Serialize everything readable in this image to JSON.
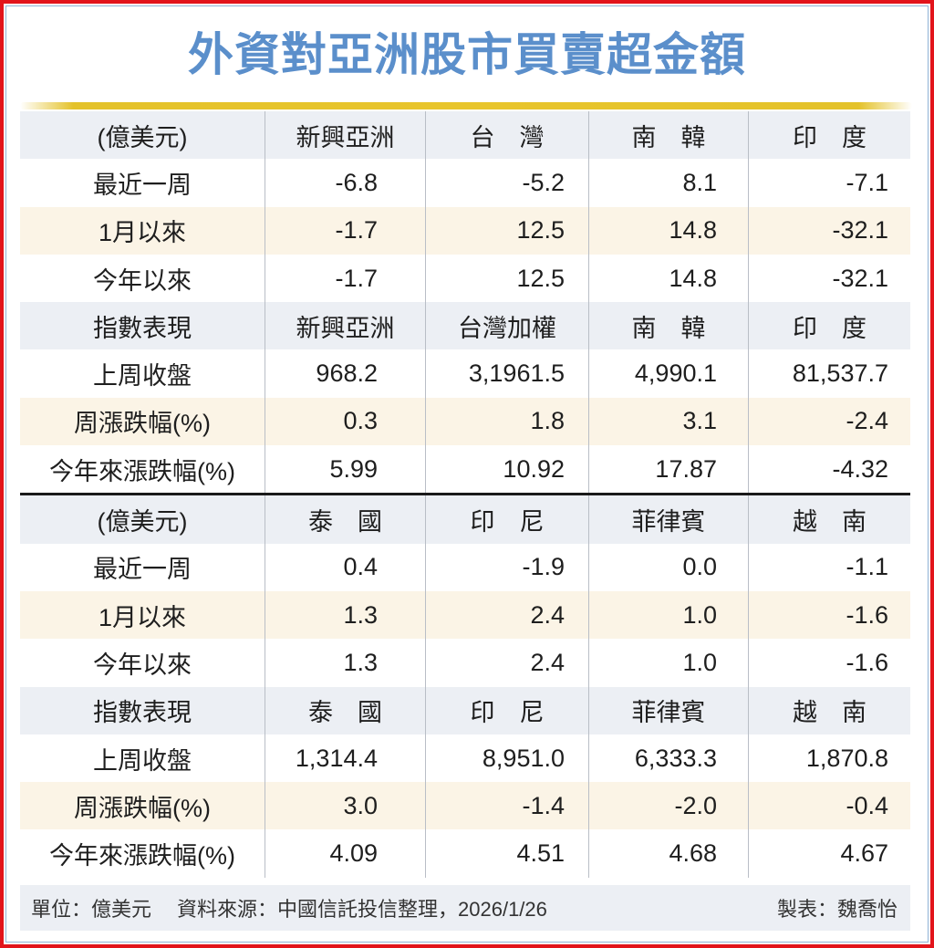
{
  "title": "外資對亞洲股市買賣超金額",
  "colors": {
    "title": "#5b8fcb",
    "frame_border": "#e2141b",
    "accent_bar": "#e8c52c",
    "header_row_bg": "#eceff4",
    "alt_row_bg": "#fbf4e6"
  },
  "section1": {
    "flow_header": [
      "(億美元)",
      "新興亞洲",
      "台　灣",
      "南　韓",
      "印　度"
    ],
    "flow_rows": [
      {
        "label": "最近一周",
        "values": [
          "-6.8",
          "-5.2",
          "8.1",
          "-7.1"
        ]
      },
      {
        "label": "1月以來",
        "values": [
          "-1.7",
          "12.5",
          "14.8",
          "-32.1"
        ]
      },
      {
        "label": "今年以來",
        "values": [
          "-1.7",
          "12.5",
          "14.8",
          "-32.1"
        ]
      }
    ],
    "index_header": [
      "指數表現",
      "新興亞洲",
      "台灣加權",
      "南　韓",
      "印　度"
    ],
    "index_rows": [
      {
        "label": "上周收盤",
        "values": [
          "968.2",
          "3,1961.5",
          "4,990.1",
          "81,537.7"
        ]
      },
      {
        "label": "周漲跌幅(%)",
        "values": [
          "0.3",
          "1.8",
          "3.1",
          "-2.4"
        ]
      },
      {
        "label": "今年來漲跌幅(%)",
        "values": [
          "5.99",
          "10.92",
          "17.87",
          "-4.32"
        ]
      }
    ]
  },
  "section2": {
    "flow_header": [
      "(億美元)",
      "泰　國",
      "印　尼",
      "菲律賓",
      "越　南"
    ],
    "flow_rows": [
      {
        "label": "最近一周",
        "values": [
          "0.4",
          "-1.9",
          "0.0",
          "-1.1"
        ]
      },
      {
        "label": "1月以來",
        "values": [
          "1.3",
          "2.4",
          "1.0",
          "-1.6"
        ]
      },
      {
        "label": "今年以來",
        "values": [
          "1.3",
          "2.4",
          "1.0",
          "-1.6"
        ]
      }
    ],
    "index_header": [
      "指數表現",
      "泰　國",
      "印　尼",
      "菲律賓",
      "越　南"
    ],
    "index_rows": [
      {
        "label": "上周收盤",
        "values": [
          "1,314.4",
          "8,951.0",
          "6,333.3",
          "1,870.8"
        ]
      },
      {
        "label": "周漲跌幅(%)",
        "values": [
          "3.0",
          "-1.4",
          "-2.0",
          "-0.4"
        ]
      },
      {
        "label": "今年來漲跌幅(%)",
        "values": [
          "4.09",
          "4.51",
          "4.68",
          "4.67"
        ]
      }
    ]
  },
  "footer": {
    "unit": "單位：億美元",
    "source": "資料來源：中國信託投信整理，2026/1/26",
    "credit": "製表：魏喬怡"
  }
}
